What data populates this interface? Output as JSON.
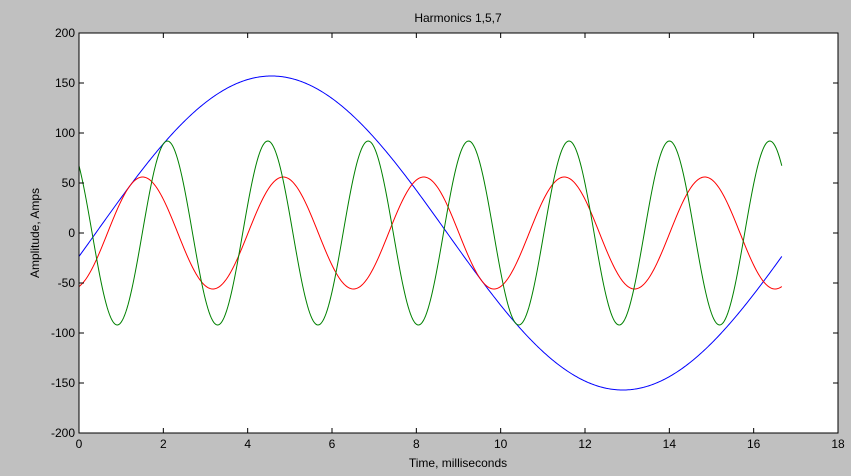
{
  "chart_data": {
    "type": "line",
    "title": "Harmonics 1,5,7",
    "xlabel": "Time, milliseconds",
    "ylabel": "Amplitude, Amps",
    "xlim": [
      0,
      18
    ],
    "ylim": [
      -200,
      200
    ],
    "xticks": [
      0,
      2,
      4,
      6,
      8,
      10,
      12,
      14,
      16,
      18
    ],
    "yticks": [
      200,
      150,
      100,
      50,
      0,
      -50,
      -100,
      -150,
      -200
    ],
    "grid": false,
    "legend": "none",
    "x_range": [
      0,
      16.667
    ],
    "series": [
      {
        "color": "#0000ff",
        "amplitude": 157,
        "frequency_hz": 60,
        "phase_deg": -8.6,
        "description": "fundamental: y = 157*sin(2*pi*60*t + phase), t in seconds"
      },
      {
        "color": "#ff0000",
        "amplitude": 56,
        "frequency_hz": 300,
        "phase_deg": -73,
        "description": "5th harmonic"
      },
      {
        "color": "#008000",
        "amplitude": 92,
        "frequency_hz": 420,
        "phase_deg": 133,
        "description": "7th harmonic"
      }
    ]
  }
}
